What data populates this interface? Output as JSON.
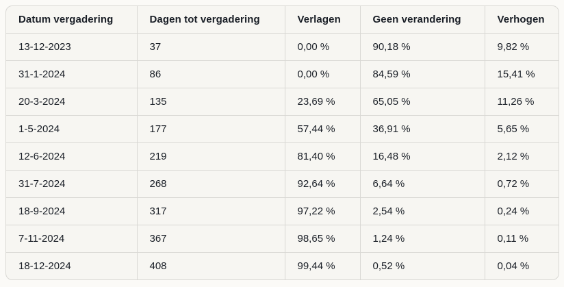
{
  "table": {
    "columns": [
      "Datum vergadering",
      "Dagen tot vergadering",
      "Verlagen",
      "Geen verandering",
      "Verhogen"
    ],
    "rows": [
      {
        "date": "13-12-2023",
        "days": "37",
        "lower": "0,00 %",
        "no_change": "90,18 %",
        "raise": "9,82 %"
      },
      {
        "date": "31-1-2024",
        "days": "86",
        "lower": "0,00 %",
        "no_change": "84,59 %",
        "raise": "15,41 %"
      },
      {
        "date": "20-3-2024",
        "days": "135",
        "lower": "23,69 %",
        "no_change": "65,05 %",
        "raise": "11,26 %"
      },
      {
        "date": "1-5-2024",
        "days": "177",
        "lower": "57,44 %",
        "no_change": "36,91 %",
        "raise": "5,65 %"
      },
      {
        "date": "12-6-2024",
        "days": "219",
        "lower": "81,40 %",
        "no_change": "16,48 %",
        "raise": "2,12 %"
      },
      {
        "date": "31-7-2024",
        "days": "268",
        "lower": "92,64 %",
        "no_change": "6,64 %",
        "raise": "0,72 %"
      },
      {
        "date": "18-9-2024",
        "days": "317",
        "lower": "97,22 %",
        "no_change": "2,54 %",
        "raise": "0,24 %"
      },
      {
        "date": "7-11-2024",
        "days": "367",
        "lower": "98,65 %",
        "no_change": "1,24 %",
        "raise": "0,11 %"
      },
      {
        "date": "18-12-2024",
        "days": "408",
        "lower": "99,44 %",
        "no_change": "0,52 %",
        "raise": "0,04 %"
      }
    ]
  },
  "colors": {
    "page_background": "#fbfaf7",
    "table_background": "#f7f6f2",
    "border": "#d9d8d4",
    "text": "#191e26"
  }
}
